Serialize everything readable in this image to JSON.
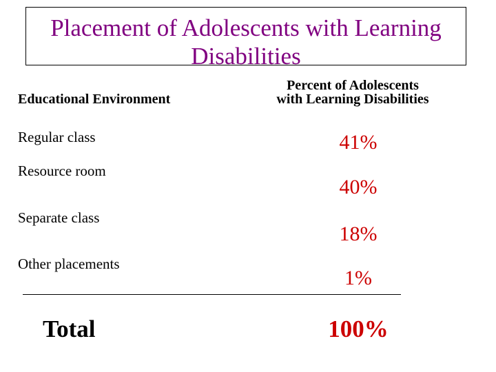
{
  "title": {
    "line1": "Placement of Adolescents with Learning",
    "line2": "Disabilities"
  },
  "table": {
    "headers": {
      "environment": "Educational Environment",
      "percent_line1": "Percent of Adolescents",
      "percent_line2": "with Learning  Disabilities"
    },
    "rows": [
      {
        "environment": "Regular class",
        "percent": "41%"
      },
      {
        "environment": "Resource room",
        "percent": "40%"
      },
      {
        "environment": "Separate class",
        "percent": "18%"
      },
      {
        "environment": "Other placements",
        "percent": "1%"
      }
    ],
    "total": {
      "label": "Total",
      "percent": "100%"
    }
  },
  "colors": {
    "title": "#800080",
    "percent_values": "#cc0000",
    "text": "#000000",
    "background": "#ffffff"
  }
}
